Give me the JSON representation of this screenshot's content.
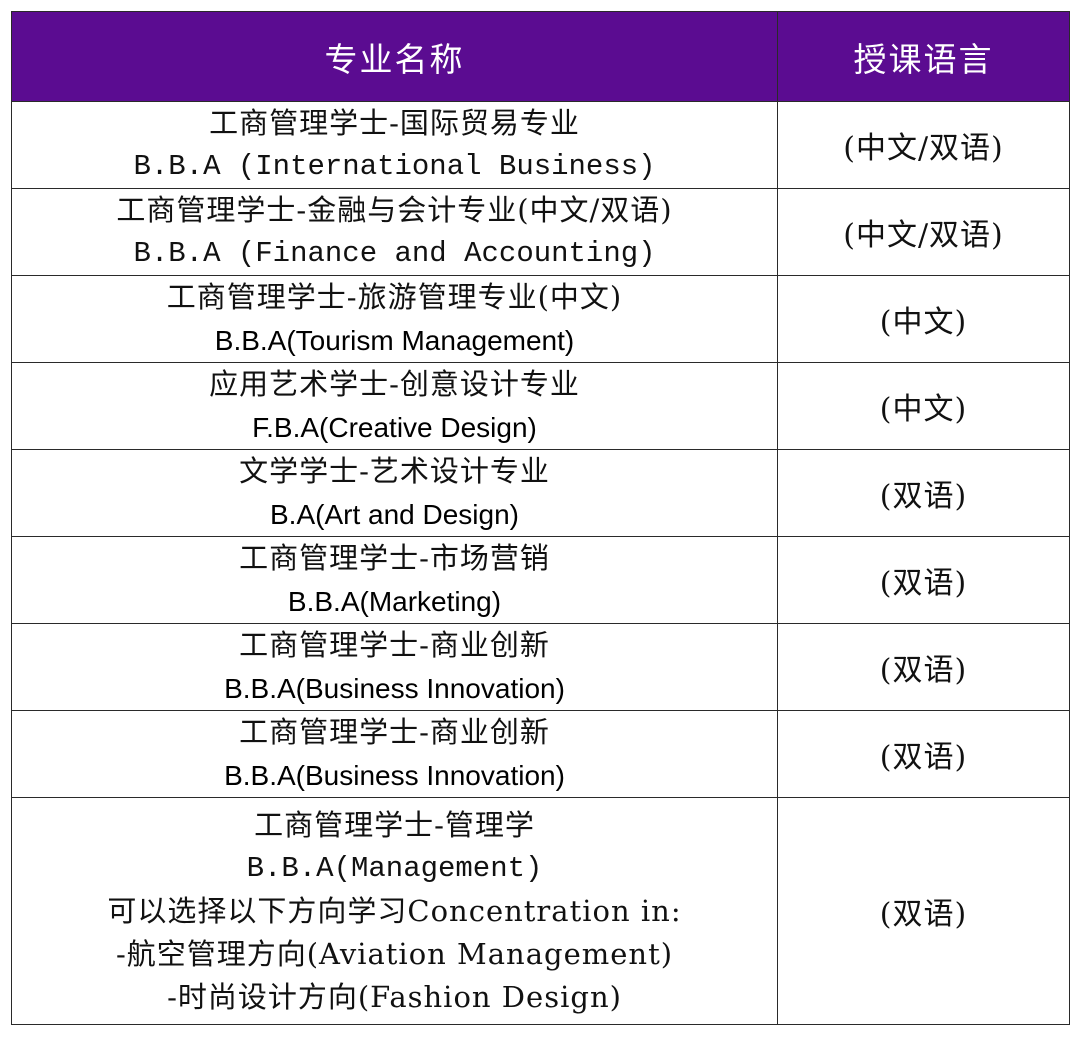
{
  "header": {
    "name_col": "专业名称",
    "lang_col": "授课语言"
  },
  "rows": [
    {
      "zh": "工商管理学士-国际贸易专业",
      "en": "B.B.A (International Business)",
      "lang": "(中文/双语)"
    },
    {
      "zh": "工商管理学士-金融与会计专业(中文/双语)",
      "en": "B.B.A (Finance and Accounting)",
      "lang": "(中文/双语)"
    },
    {
      "zh": "工商管理学士-旅游管理专业(中文)",
      "en": "B.B.A(Tourism Management)",
      "lang": "(中文)"
    },
    {
      "zh": "应用艺术学士-创意设计专业",
      "en": "F.B.A(Creative Design)",
      "lang": "(中文)"
    },
    {
      "zh": "文学学士-艺术设计专业",
      "en": "B.A(Art and Design)",
      "lang": "(双语)"
    },
    {
      "zh": "工商管理学士-市场营销",
      "en": "B.B.A(Marketing)",
      "lang": "(双语)"
    },
    {
      "zh": "工商管理学士-商业创新",
      "en": "B.B.A(Business Innovation)",
      "lang": "(双语)"
    },
    {
      "zh": "工商管理学士-商业创新",
      "en": "B.B.A(Business Innovation)",
      "lang": "(双语)"
    },
    {
      "zh": "工商管理学士-管理学",
      "en": "B.B.A(Management)",
      "concentration": "可以选择以下方向学习Concentration in:",
      "options": [
        "-航空管理方向(Aviation Management)",
        "-时尚设计方向(Fashion Design)"
      ],
      "lang": "(双语)"
    }
  ]
}
